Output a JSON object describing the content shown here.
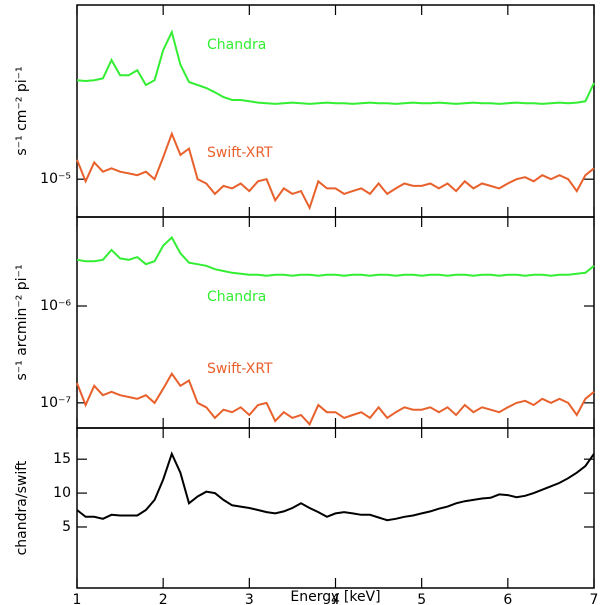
{
  "chart_data": [
    {
      "type": "line",
      "ylabel": "s⁻¹ cm⁻² pi⁻¹",
      "yscale": "log",
      "x": [
        1.0,
        1.1,
        1.2,
        1.3,
        1.4,
        1.5,
        1.6,
        1.7,
        1.8,
        1.9,
        2.0,
        2.1,
        2.2,
        2.3,
        2.4,
        2.5,
        2.6,
        2.7,
        2.8,
        2.9,
        3.0,
        3.1,
        3.2,
        3.3,
        3.4,
        3.5,
        3.6,
        3.7,
        3.8,
        3.9,
        4.0,
        4.1,
        4.2,
        4.3,
        4.4,
        4.5,
        4.6,
        4.7,
        4.8,
        4.9,
        5.0,
        5.1,
        5.2,
        5.3,
        5.4,
        5.5,
        5.6,
        5.7,
        5.8,
        5.9,
        6.0,
        6.1,
        6.2,
        6.3,
        6.4,
        6.5,
        6.6,
        6.7,
        6.8,
        6.9,
        7.0
      ],
      "xlim": [
        1,
        7
      ],
      "xticks": [
        1,
        2,
        3,
        4,
        5,
        6,
        7
      ],
      "ylim": [
        4e-06,
        0.00068
      ],
      "yticks": [
        {
          "value": 1e-05,
          "label": "10⁻⁵"
        }
      ],
      "series": [
        {
          "name": "Chandra",
          "color": "#33ee33",
          "values": [
            0.00011,
            0.000108,
            0.00011,
            0.000115,
            0.000179,
            0.000124,
            0.000124,
            0.00014,
            9.8e-05,
            0.00011,
            0.000228,
            0.000353,
            0.00016,
            0.000105,
            9.8e-05,
            9.1e-05,
            8.2e-05,
            7.3e-05,
            6.8e-05,
            6.8e-05,
            6.6e-05,
            6.4e-05,
            6.3e-05,
            6.2e-05,
            6.3e-05,
            6.4e-05,
            6.3e-05,
            6.2e-05,
            6.3e-05,
            6.4e-05,
            6.3e-05,
            6.3e-05,
            6.2e-05,
            6.3e-05,
            6.4e-05,
            6.3e-05,
            6.3e-05,
            6.2e-05,
            6.3e-05,
            6.4e-05,
            6.3e-05,
            6.3e-05,
            6.4e-05,
            6.3e-05,
            6.2e-05,
            6.3e-05,
            6.4e-05,
            6.3e-05,
            6.3e-05,
            6.2e-05,
            6.3e-05,
            6.4e-05,
            6.3e-05,
            6.3e-05,
            6.2e-05,
            6.3e-05,
            6.4e-05,
            6.3e-05,
            6.4e-05,
            6.6e-05,
            0.000103
          ]
        },
        {
          "name": "Swift-XRT",
          "color": "#e8612c",
          "values": [
            1.6e-05,
            9.5e-06,
            1.5e-05,
            1.2e-05,
            1.3e-05,
            1.2e-05,
            1.15e-05,
            1.1e-05,
            1.2e-05,
            1e-05,
            1.7e-05,
            3e-05,
            1.8e-05,
            2.1e-05,
            1e-05,
            9e-06,
            7e-06,
            8.5e-06,
            8e-06,
            9e-06,
            7.5e-06,
            9.5e-06,
            1e-05,
            6e-06,
            8e-06,
            7e-06,
            7.5e-06,
            5e-06,
            9.5e-06,
            8e-06,
            8e-06,
            7e-06,
            7.5e-06,
            8e-06,
            7e-06,
            9e-06,
            7e-06,
            8e-06,
            9e-06,
            8.5e-06,
            8.5e-06,
            9e-06,
            8e-06,
            9e-06,
            7.5e-06,
            9.5e-06,
            8e-06,
            9e-06,
            8.5e-06,
            8e-06,
            9e-06,
            1e-05,
            1.05e-05,
            9.5e-06,
            1.1e-05,
            1e-05,
            1.1e-05,
            1e-05,
            7.5e-06,
            1.1e-05,
            1.3e-05
          ]
        }
      ]
    },
    {
      "type": "line",
      "ylabel": "s⁻¹ arcmin⁻² pi⁻¹",
      "yscale": "log",
      "x": [
        1.0,
        1.1,
        1.2,
        1.3,
        1.4,
        1.5,
        1.6,
        1.7,
        1.8,
        1.9,
        2.0,
        2.1,
        2.2,
        2.3,
        2.4,
        2.5,
        2.6,
        2.7,
        2.8,
        2.9,
        3.0,
        3.1,
        3.2,
        3.3,
        3.4,
        3.5,
        3.6,
        3.7,
        3.8,
        3.9,
        4.0,
        4.1,
        4.2,
        4.3,
        4.4,
        4.5,
        4.6,
        4.7,
        4.8,
        4.9,
        5.0,
        5.1,
        5.2,
        5.3,
        5.4,
        5.5,
        5.6,
        5.7,
        5.8,
        5.9,
        6.0,
        6.1,
        6.2,
        6.3,
        6.4,
        6.5,
        6.6,
        6.7,
        6.8,
        6.9,
        7.0
      ],
      "xlim": [
        1,
        7
      ],
      "xticks": [
        1,
        2,
        3,
        4,
        5,
        6,
        7
      ],
      "ylim": [
        5.5e-08,
        8.3e-06
      ],
      "yticks": [
        {
          "value": 1e-06,
          "label": "10⁻⁶"
        },
        {
          "value": 1e-07,
          "label": "10⁻⁷"
        }
      ],
      "series": [
        {
          "name": "Chandra",
          "color": "#33ee33",
          "values": [
            3e-06,
            2.9e-06,
            2.9e-06,
            3e-06,
            3.8e-06,
            3.1e-06,
            3e-06,
            3.2e-06,
            2.7e-06,
            2.9e-06,
            4.2e-06,
            5.1e-06,
            3.5e-06,
            2.8e-06,
            2.7e-06,
            2.6e-06,
            2.4e-06,
            2.3e-06,
            2.2e-06,
            2.15e-06,
            2.1e-06,
            2.1e-06,
            2.05e-06,
            2.1e-06,
            2.1e-06,
            2.05e-06,
            2.1e-06,
            2.1e-06,
            2.05e-06,
            2.1e-06,
            2.1e-06,
            2.05e-06,
            2.1e-06,
            2.1e-06,
            2.05e-06,
            2.1e-06,
            2.1e-06,
            2.05e-06,
            2.1e-06,
            2.1e-06,
            2.05e-06,
            2.1e-06,
            2.1e-06,
            2.05e-06,
            2.1e-06,
            2.1e-06,
            2.05e-06,
            2.1e-06,
            2.1e-06,
            2.05e-06,
            2.1e-06,
            2.1e-06,
            2.05e-06,
            2.1e-06,
            2.1e-06,
            2.05e-06,
            2.1e-06,
            2.1e-06,
            2.15e-06,
            2.2e-06,
            2.6e-06
          ]
        },
        {
          "name": "Swift-XRT",
          "color": "#e8612c",
          "values": [
            1.6e-07,
            9.5e-08,
            1.5e-07,
            1.2e-07,
            1.3e-07,
            1.2e-07,
            1.15e-07,
            1.1e-07,
            1.2e-07,
            1e-07,
            1.4e-07,
            2e-07,
            1.5e-07,
            1.7e-07,
            1e-07,
            9e-08,
            7e-08,
            8.5e-08,
            8e-08,
            9e-08,
            7.5e-08,
            9.5e-08,
            1e-07,
            6.5e-08,
            8e-08,
            7e-08,
            7.5e-08,
            6e-08,
            9.5e-08,
            8e-08,
            8e-08,
            7e-08,
            7.5e-08,
            8e-08,
            7e-08,
            9e-08,
            7e-08,
            8e-08,
            9e-08,
            8.5e-08,
            8.5e-08,
            9e-08,
            8e-08,
            9e-08,
            7.5e-08,
            9.5e-08,
            8e-08,
            9e-08,
            8.5e-08,
            8e-08,
            9e-08,
            1e-07,
            1.05e-07,
            9.5e-08,
            1.1e-07,
            1e-07,
            1.1e-07,
            1e-07,
            7.5e-08,
            1.1e-07,
            1.3e-07
          ]
        }
      ]
    },
    {
      "type": "line",
      "ylabel": "chandra/swift",
      "xlabel": "Energy [keV]",
      "x": [
        1.0,
        1.1,
        1.2,
        1.3,
        1.4,
        1.5,
        1.6,
        1.7,
        1.8,
        1.9,
        2.0,
        2.1,
        2.2,
        2.3,
        2.4,
        2.5,
        2.6,
        2.7,
        2.8,
        2.9,
        3.0,
        3.1,
        3.2,
        3.3,
        3.4,
        3.5,
        3.6,
        3.7,
        3.8,
        3.9,
        4.0,
        4.1,
        4.2,
        4.3,
        4.4,
        4.5,
        4.6,
        4.7,
        4.8,
        4.9,
        5.0,
        5.1,
        5.2,
        5.3,
        5.4,
        5.5,
        5.6,
        5.7,
        5.8,
        5.9,
        6.0,
        6.1,
        6.2,
        6.3,
        6.4,
        6.5,
        6.6,
        6.7,
        6.8,
        6.9,
        7.0
      ],
      "xlim": [
        1,
        7
      ],
      "xticks": [
        1,
        2,
        3,
        4,
        5,
        6,
        7
      ],
      "ylim": [
        -4,
        19.6
      ],
      "yticks": [
        5,
        10,
        15
      ],
      "series": [
        {
          "color": "#000000",
          "values": [
            7.5,
            6.5,
            6.5,
            6.2,
            6.8,
            6.7,
            6.7,
            6.7,
            7.5,
            9,
            12,
            15.8,
            13,
            8.5,
            9.5,
            10.2,
            10,
            9,
            8.2,
            8,
            7.8,
            7.5,
            7.2,
            7,
            7.3,
            7.8,
            8.5,
            7.8,
            7.2,
            6.5,
            7,
            7.2,
            7,
            6.8,
            6.8,
            6.4,
            6,
            6.2,
            6.5,
            6.7,
            7,
            7.3,
            7.7,
            8,
            8.5,
            8.8,
            9,
            9.2,
            9.3,
            9.8,
            9.7,
            9.4,
            9.6,
            10,
            10.5,
            11,
            11.5,
            12.2,
            13,
            14,
            15.8
          ]
        }
      ]
    }
  ]
}
